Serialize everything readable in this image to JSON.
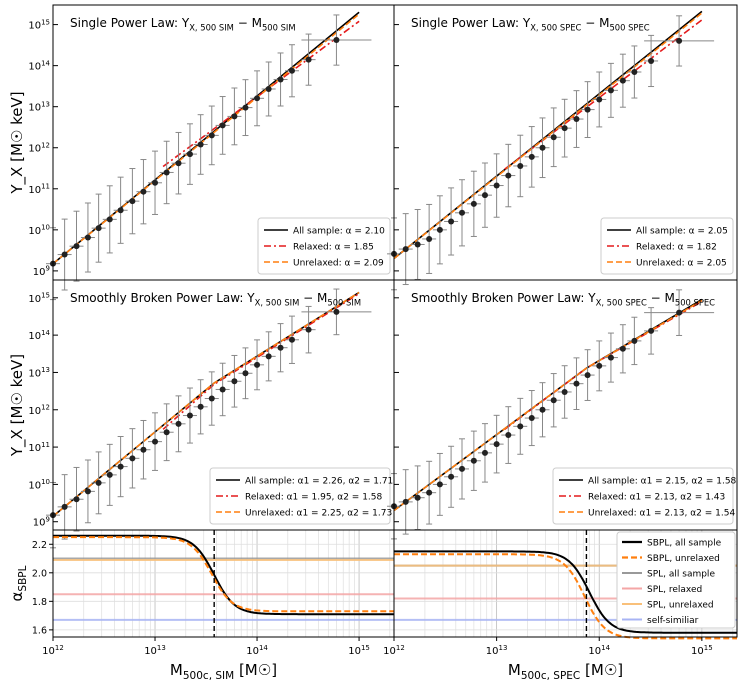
{
  "chart_data": [
    {
      "panel": "top-left",
      "type": "line",
      "title": "Single Power Law: Y_X, 500SIM − M500SIM",
      "ylabel": "Y_X [M☉ keV]",
      "xscale": "log",
      "yscale": "log",
      "xlim": [
        1000000000000.0,
        2200000000000000.0
      ],
      "ylim": [
        600000000.0,
        3000000000000000.0
      ],
      "x_ticks": [],
      "y_ticks": [
        "10^9",
        "10^10",
        "10^11",
        "10^12",
        "10^13",
        "10^14",
        "10^15"
      ],
      "legend_position": "lower-right",
      "legend": [
        "All sample: α = 2.10",
        "Relaxed:     α = 1.85",
        "Unrelaxed: α = 2.09"
      ],
      "series": [
        {
          "name": "All sample",
          "style": "solid",
          "color": "#000000",
          "x": [
            1000000000000.0,
            1000000000000000.0
          ],
          "y": [
            1500000000.0,
            2000000000000000.0
          ]
        },
        {
          "name": "Relaxed",
          "style": "dashdot",
          "color": "#e41a1c",
          "x": [
            12000000000000.0,
            1000000000000000.0
          ],
          "y": [
            350000000000.0,
            1200000000000000.0
          ]
        },
        {
          "name": "Unrelaxed",
          "style": "dashed",
          "color": "#ff7f0e",
          "x": [
            1000000000000.0,
            1000000000000000.0
          ],
          "y": [
            1500000000.0,
            1800000000000000.0
          ]
        }
      ],
      "points": {
        "x": [
          1000000000000.0,
          1300000000000.0,
          1700000000000.0,
          2200000000000.0,
          2800000000000.0,
          3600000000000.0,
          4600000000000.0,
          6000000000000.0,
          7700000000000.0,
          10000000000000.0,
          13000000000000.0,
          17000000000000.0,
          22000000000000.0,
          28000000000000.0,
          36000000000000.0,
          46000000000000.0,
          60000000000000.0,
          77000000000000.0,
          100000000000000.0,
          130000000000000.0,
          170000000000000.0,
          220000000000000.0,
          320000000000000.0,
          600000000000000.0
        ],
        "y": [
          1500000000.0,
          2500000000.0,
          4000000000.0,
          6500000000.0,
          11000000000.0,
          18000000000.0,
          30000000000.0,
          50000000000.0,
          85000000000.0,
          140000000000.0,
          250000000000.0,
          420000000000.0,
          700000000000.0,
          1200000000000.0,
          2000000000000.0,
          3500000000000.0,
          5800000000000.0,
          9500000000000.0,
          16000000000000.0,
          27000000000000.0,
          46000000000000.0,
          75000000000000.0,
          140000000000000.0,
          420000000000000.0
        ]
      }
    },
    {
      "panel": "top-right",
      "type": "line",
      "title": "Single Power Law: Y_X, 500SPEC − M500SPEC",
      "xscale": "log",
      "yscale": "log",
      "xlim": [
        1000000000000.0,
        2200000000000000.0
      ],
      "ylim": [
        600000000.0,
        3000000000000000.0
      ],
      "legend_position": "lower-right",
      "legend": [
        "All sample: α = 2.05",
        "Relaxed:     α = 1.82",
        "Unrelaxed: α = 2.05"
      ],
      "series": [
        {
          "name": "All sample",
          "style": "solid",
          "color": "#000000",
          "x": [
            1000000000000.0,
            1000000000000000.0
          ],
          "y": [
            2000000000.0,
            2100000000000000.0
          ]
        },
        {
          "name": "Relaxed",
          "style": "dashdot",
          "color": "#e41a1c",
          "x": [
            12000000000000.0,
            1000000000000000.0
          ],
          "y": [
            300000000000.0,
            1300000000000000.0
          ]
        },
        {
          "name": "Unrelaxed",
          "style": "dashed",
          "color": "#ff7f0e",
          "x": [
            1000000000000.0,
            1000000000000000.0
          ],
          "y": [
            2000000000.0,
            1900000000000000.0
          ]
        }
      ],
      "points": {
        "x": [
          1000000000000.0,
          1300000000000.0,
          1700000000000.0,
          2200000000000.0,
          2800000000000.0,
          3600000000000.0,
          4600000000000.0,
          6000000000000.0,
          7700000000000.0,
          10000000000000.0,
          13000000000000.0,
          17000000000000.0,
          22000000000000.0,
          28000000000000.0,
          36000000000000.0,
          46000000000000.0,
          60000000000000.0,
          77000000000000.0,
          100000000000000.0,
          130000000000000.0,
          170000000000000.0,
          220000000000000.0,
          320000000000000.0,
          600000000000000.0
        ],
        "y": [
          2600000000.0,
          3400000000.0,
          4400000000.0,
          6000000000.0,
          10000000000.0,
          16000000000.0,
          26000000000.0,
          43000000000.0,
          70000000000.0,
          120000000000.0,
          210000000000.0,
          360000000000.0,
          600000000000.0,
          1000000000000.0,
          1800000000000.0,
          3000000000000.0,
          5000000000000.0,
          8500000000000.0,
          15000000000000.0,
          25000000000000.0,
          43000000000000.0,
          70000000000000.0,
          130000000000000.0,
          400000000000000.0
        ]
      }
    },
    {
      "panel": "middle-left",
      "type": "line",
      "title": "Smoothly Broken Power Law: Y_X, 500SIM − M500SIM",
      "ylabel": "Y_X [M☉ keV]",
      "xscale": "log",
      "yscale": "log",
      "xlim": [
        1000000000000.0,
        2200000000000000.0
      ],
      "ylim": [
        600000000.0,
        3000000000000000.0
      ],
      "y_ticks": [
        "10^9",
        "10^10",
        "10^11",
        "10^12",
        "10^13",
        "10^14",
        "10^15"
      ],
      "legend_position": "lower-right",
      "legend": [
        "All sample: α1 = 2.26, α2 = 1.71",
        "Relaxed:     α1 = 1.95, α2 = 1.58",
        "Unrelaxed: α1 = 2.25, α2 = 1.73"
      ],
      "series": [
        {
          "name": "All sample",
          "style": "solid",
          "color": "#000000",
          "x": [
            1000000000000.0,
            38000000000000.0,
            1000000000000000.0
          ],
          "y": [
            1400000000.0,
            5200000000000.0,
            1400000000000000.0
          ]
        },
        {
          "name": "Relaxed",
          "style": "dashdot",
          "color": "#e41a1c",
          "x": [
            12000000000000.0,
            38000000000000.0,
            1000000000000000.0
          ],
          "y": [
            300000000000.0,
            4800000000000.0,
            1300000000000000.0
          ]
        },
        {
          "name": "Unrelaxed",
          "style": "dashed",
          "color": "#ff7f0e",
          "x": [
            1000000000000.0,
            38000000000000.0,
            1000000000000000.0
          ],
          "y": [
            1400000000.0,
            5200000000000.0,
            1400000000000000.0
          ]
        }
      ],
      "points": {
        "x": [
          1000000000000.0,
          1300000000000.0,
          1700000000000.0,
          2200000000000.0,
          2800000000000.0,
          3600000000000.0,
          4600000000000.0,
          6000000000000.0,
          7700000000000.0,
          10000000000000.0,
          13000000000000.0,
          17000000000000.0,
          22000000000000.0,
          28000000000000.0,
          36000000000000.0,
          46000000000000.0,
          60000000000000.0,
          77000000000000.0,
          100000000000000.0,
          130000000000000.0,
          170000000000000.0,
          220000000000000.0,
          320000000000000.0,
          600000000000000.0
        ],
        "y": [
          1500000000.0,
          2500000000.0,
          4000000000.0,
          6500000000.0,
          11000000000.0,
          18000000000.0,
          30000000000.0,
          50000000000.0,
          85000000000.0,
          140000000000.0,
          250000000000.0,
          420000000000.0,
          700000000000.0,
          1200000000000.0,
          2000000000000.0,
          3500000000000.0,
          5800000000000.0,
          9500000000000.0,
          16000000000000.0,
          27000000000000.0,
          46000000000000.0,
          75000000000000.0,
          140000000000000.0,
          420000000000000.0
        ]
      }
    },
    {
      "panel": "middle-right",
      "type": "line",
      "title": "Smoothly Broken Power Law: Y_X, 500SPEC − M500SPEC",
      "xscale": "log",
      "yscale": "log",
      "xlim": [
        1000000000000.0,
        2200000000000000.0
      ],
      "ylim": [
        600000000.0,
        3000000000000000.0
      ],
      "legend_position": "lower-right",
      "legend": [
        "All sample: α1 = 2.15, α2 = 1.58",
        "Relaxed:     α1 = 2.13, α2 = 1.43",
        "Unrelaxed: α1 = 2.13, α2 = 1.54"
      ],
      "series": [
        {
          "name": "All sample",
          "style": "solid",
          "color": "#000000",
          "x": [
            1000000000000.0,
            75000000000000.0,
            1000000000000000.0
          ],
          "y": [
            2000000000.0,
            13000000000000.0,
            900000000000000.0
          ]
        },
        {
          "name": "Relaxed",
          "style": "dashdot",
          "color": "#e41a1c",
          "x": [
            12000000000000.0,
            75000000000000.0,
            1000000000000000.0
          ],
          "y": [
            300000000000.0,
            13000000000000.0,
            800000000000000.0
          ]
        },
        {
          "name": "Unrelaxed",
          "style": "dashed",
          "color": "#ff7f0e",
          "x": [
            1000000000000.0,
            75000000000000.0,
            1000000000000000.0
          ],
          "y": [
            2000000000.0,
            13000000000000.0,
            850000000000000.0
          ]
        }
      ],
      "points": {
        "x": [
          1000000000000.0,
          1300000000000.0,
          1700000000000.0,
          2200000000000.0,
          2800000000000.0,
          3600000000000.0,
          4600000000000.0,
          6000000000000.0,
          7700000000000.0,
          10000000000000.0,
          13000000000000.0,
          17000000000000.0,
          22000000000000.0,
          28000000000000.0,
          36000000000000.0,
          46000000000000.0,
          60000000000000.0,
          77000000000000.0,
          100000000000000.0,
          130000000000000.0,
          170000000000000.0,
          220000000000000.0,
          320000000000000.0,
          600000000000000.0
        ],
        "y": [
          2600000000.0,
          3400000000.0,
          4400000000.0,
          6000000000.0,
          10000000000.0,
          16000000000.0,
          26000000000.0,
          43000000000.0,
          70000000000.0,
          120000000000.0,
          210000000000.0,
          360000000000.0,
          600000000000.0,
          1000000000000.0,
          1800000000000.0,
          3000000000000.0,
          5000000000000.0,
          8500000000000.0,
          15000000000000.0,
          25000000000000.0,
          43000000000000.0,
          70000000000000.0,
          130000000000000.0,
          400000000000000.0
        ]
      }
    },
    {
      "panel": "bottom-left",
      "type": "line",
      "ylabel": "α_SBPL",
      "xlabel": "M_500c, SIM [M☉]",
      "xscale": "log",
      "xlim": [
        1000000000000.0,
        2200000000000000.0
      ],
      "ylim": [
        1.55,
        2.3
      ],
      "x_ticks": [
        "10^12",
        "10^13",
        "10^14",
        "10^15"
      ],
      "y_ticks": [
        "1.6",
        "1.8",
        "2.0",
        "2.2"
      ],
      "vline_x": 38000000000000.0,
      "hlines": [
        {
          "label": "SPL, all sample",
          "y": 2.1,
          "color": "#999999"
        },
        {
          "label": "SPL, relaxed",
          "y": 1.85,
          "color": "#f4a6a6"
        },
        {
          "label": "SPL, unrelaxed",
          "y": 2.09,
          "color": "#f9c07a"
        },
        {
          "label": "self-similiar",
          "y": 1.67,
          "color": "#a8b4f4"
        }
      ],
      "series": [
        {
          "name": "SBPL, all sample",
          "style": "solid",
          "color": "#000000",
          "a1": 2.26,
          "a2": 1.71,
          "pivot": 38000000000000.0
        },
        {
          "name": "SBPL, unrelaxed",
          "style": "dashed",
          "color": "#ff7f0e",
          "a1": 2.25,
          "a2": 1.73,
          "pivot": 36000000000000.0
        }
      ]
    },
    {
      "panel": "bottom-right",
      "type": "line",
      "xlabel": "M_500c, SPEC [M☉]",
      "xscale": "log",
      "xlim": [
        1000000000000.0,
        2200000000000000.0
      ],
      "ylim": [
        1.55,
        2.3
      ],
      "x_ticks": [
        "10^12",
        "10^13",
        "10^14",
        "10^15"
      ],
      "vline_x": 75000000000000.0,
      "legend_position": "upper-right",
      "legend": [
        "SBPL, all sample",
        "SBPL, unrelaxed",
        "SPL, all sample",
        "SPL, relaxed",
        "SPL, unrelaxed",
        "self-similiar"
      ],
      "hlines": [
        {
          "label": "SPL, all sample",
          "y": 2.05,
          "color": "#999999"
        },
        {
          "label": "SPL, relaxed",
          "y": 1.82,
          "color": "#f4a6a6"
        },
        {
          "label": "SPL, unrelaxed",
          "y": 2.05,
          "color": "#f9c07a"
        },
        {
          "label": "self-similiar",
          "y": 1.67,
          "color": "#a8b4f4"
        }
      ],
      "series": [
        {
          "name": "SBPL, all sample",
          "style": "solid",
          "color": "#000000",
          "a1": 2.15,
          "a2": 1.58,
          "pivot": 80000000000000.0
        },
        {
          "name": "SBPL, unrelaxed",
          "style": "dashed",
          "color": "#ff7f0e",
          "a1": 2.13,
          "a2": 1.54,
          "pivot": 72000000000000.0
        }
      ]
    }
  ]
}
